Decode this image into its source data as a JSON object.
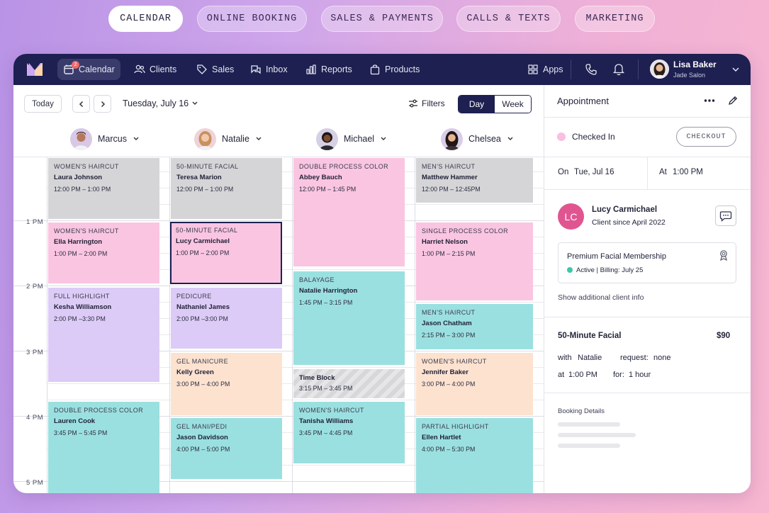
{
  "top_nav": [
    "CALENDAR",
    "ONLINE BOOKING",
    "SALES & PAYMENTS",
    "CALLS & TEXTS",
    "MARKETING"
  ],
  "app_nav": {
    "items": [
      "Calendar",
      "Clients",
      "Sales",
      "Inbox",
      "Reports",
      "Products"
    ],
    "calendar_badge": "2",
    "apps_label": "Apps",
    "user_name": "Lisa Baker",
    "user_salon": "Jade Salon"
  },
  "toolbar": {
    "today": "Today",
    "date": "Tuesday, July 16",
    "filters": "Filters",
    "view_day": "Day",
    "view_week": "Week"
  },
  "staff": [
    "Marcus",
    "Natalie",
    "Michael",
    "Chelsea"
  ],
  "hours": [
    "1 PM",
    "2 PM",
    "3 PM",
    "4 PM",
    "5 PM"
  ],
  "appointments": {
    "marcus": [
      {
        "service": "WOMEN'S HAIRCUT",
        "client": "Laura Johnson",
        "time": "12:00 PM – 1:00 PM"
      },
      {
        "service": "WOMEN'S HAIRCUT",
        "client": "Ella Harrington",
        "time": "1:00 PM – 2:00 PM"
      },
      {
        "service": "FULL HIGHLIGHT",
        "client": "Kesha Williamson",
        "time": "2:00 PM –3:30 PM"
      },
      {
        "service": "DOUBLE PROCESS COLOR",
        "client": "Lauren Cook",
        "time": "3:45 PM – 5:45 PM"
      }
    ],
    "natalie": [
      {
        "service": "50-MINUTE FACIAL",
        "client": "Teresa Marion",
        "time": "12:00 PM – 1:00 PM"
      },
      {
        "service": "50-MINUTE FACIAL",
        "client": "Lucy Carmichael",
        "time": "1:00 PM – 2:00 PM"
      },
      {
        "service": "PEDICURE",
        "client": "Nathaniel James",
        "time": "2:00 PM –3:00 PM"
      },
      {
        "service": "GEL MANICURE",
        "client": "Kelly Green",
        "time": "3:00 PM – 4:00 PM"
      },
      {
        "service": "GEL MANI/PEDI",
        "client": "Jason Davidson",
        "time": "4:00 PM – 5:00 PM"
      }
    ],
    "michael": [
      {
        "service": "DOUBLE PROCESS COLOR",
        "client": "Abbey Bauch",
        "time": "12:00 PM – 1:45 PM"
      },
      {
        "service": "BALAYAGE",
        "client": "Natalie Harrington",
        "time": "1:45 PM – 3:15 PM"
      },
      {
        "service": "Time Block",
        "client": "",
        "time": "3:15 PM – 3:45 PM"
      },
      {
        "service": "WOMEN'S HAIRCUT",
        "client": "Tanisha Williams",
        "time": "3:45 PM – 4:45 PM"
      }
    ],
    "chelsea": [
      {
        "service": "MEN'S HAIRCUT",
        "client": "Matthew Hammer",
        "time": "12:00 PM – 12:45PM"
      },
      {
        "service": "SINGLE PROCESS COLOR",
        "client": "Harriet Nelson",
        "time": "1:00 PM – 2:15 PM"
      },
      {
        "service": "MEN'S HAIRCUT",
        "client": "Jason Chatham",
        "time": "2:15 PM – 3:00 PM"
      },
      {
        "service": "WOMEN'S HAIRCUT",
        "client": "Jennifer Baker",
        "time": "3:00 PM – 4:00 PM"
      },
      {
        "service": "PARTIAL HIGHLIGHT",
        "client": "Ellen Hartlet",
        "time": "4:00 PM – 5:30 PM"
      }
    ]
  },
  "colors": {
    "gray": "#d5d5d8",
    "pink": "#fac5e1",
    "purple": "#dccbf6",
    "teal": "#9be0e0",
    "peach": "#fde2d0",
    "navy": "#1d2050"
  },
  "panel": {
    "title": "Appointment",
    "status": "Checked In",
    "checkout": "CHECKOUT",
    "on_label": "On",
    "on_value": "Tue, Jul 16",
    "at_label": "At",
    "at_value": "1:00 PM",
    "client_initials": "LC",
    "client_name": "Lucy Carmichael",
    "client_since": "Client since April 2022",
    "membership_title": "Premium Facial Membership",
    "membership_status": "Active",
    "membership_billing": "Billing: July 25",
    "show_more": "Show additional client info",
    "service": "50-Minute Facial",
    "price": "$90",
    "with_label": "with",
    "with_value": "Natalie",
    "request_label": "request:",
    "request_value": "none",
    "at2_label": "at",
    "at2_value": "1:00 PM",
    "for_label": "for:",
    "for_value": "1 hour",
    "booking_details": "Booking Details"
  }
}
